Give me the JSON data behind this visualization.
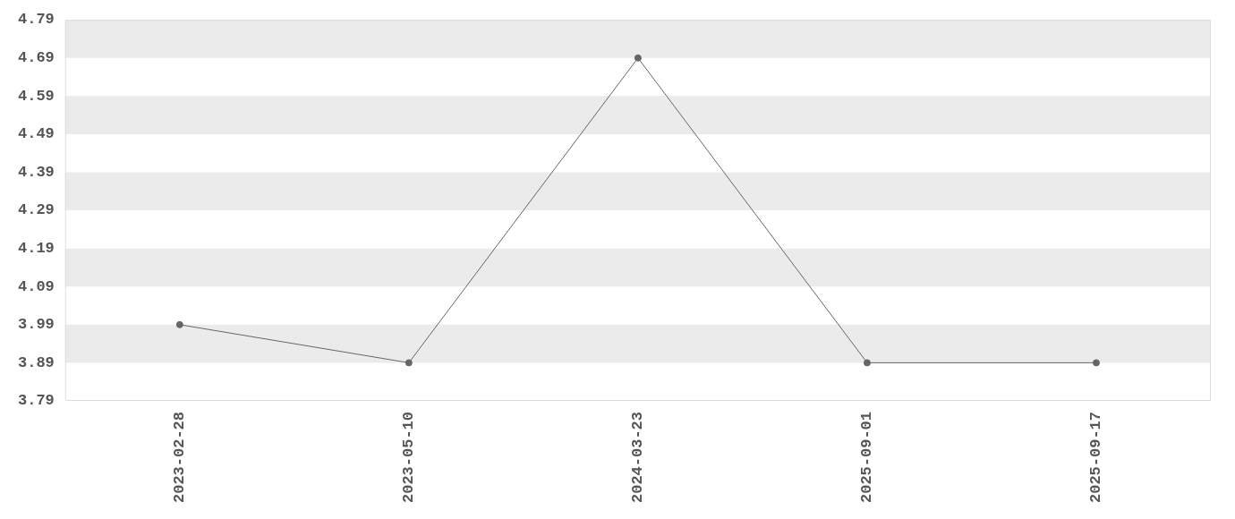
{
  "chart_data": {
    "type": "line",
    "categories": [
      "2023-02-28",
      "2023-05-10",
      "2024-03-23",
      "2025-09-01",
      "2025-09-17"
    ],
    "series": [
      {
        "color": "#666666",
        "values": [
          3.99,
          3.89,
          4.69,
          3.89,
          3.89
        ]
      }
    ],
    "ylim": [
      3.79,
      4.79
    ],
    "yticks": [
      3.79,
      3.89,
      3.99,
      4.09,
      4.19,
      4.29,
      4.39,
      4.49,
      4.59,
      4.69,
      4.79
    ],
    "bands": [
      {
        "axis": "y",
        "from": 3.89,
        "to": 3.99,
        "color": "#ebebeb"
      },
      {
        "axis": "y",
        "from": 4.09,
        "to": 4.19,
        "color": "#ebebeb"
      },
      {
        "axis": "y",
        "from": 4.29,
        "to": 4.39,
        "color": "#ebebeb"
      },
      {
        "axis": "y",
        "from": 4.49,
        "to": 4.59,
        "color": "#ebebeb"
      },
      {
        "axis": "y",
        "from": 4.69,
        "to": 4.79,
        "color": "#ebebeb"
      }
    ],
    "grid": false,
    "legend": false,
    "marker": "circle",
    "line_style": "solid"
  }
}
